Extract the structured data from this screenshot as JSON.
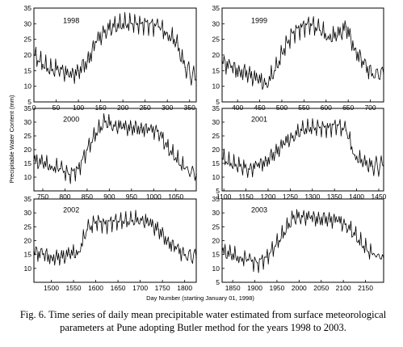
{
  "figure": {
    "x_axis_label": "Day Number (starting January 01, 1998)",
    "y_axis_label": "Precipitable Water Content (mm)",
    "caption_line1": "Fig. 6. Time series of daily mean precipitable water estimated from surface meteorological",
    "caption_line2": "parameters at Pune adopting Butler method for the years 1998 to 2003."
  },
  "chart_data": [
    {
      "type": "line",
      "title": "1998",
      "xlim": [
        0,
        365
      ],
      "ylim": [
        5,
        35
      ],
      "xticks": [
        0,
        50,
        100,
        150,
        200,
        250,
        300,
        350
      ],
      "yticks": [
        5,
        10,
        15,
        20,
        25,
        30,
        35
      ],
      "x": [
        0,
        20,
        40,
        60,
        80,
        100,
        120,
        140,
        160,
        180,
        200,
        220,
        240,
        260,
        280,
        300,
        320,
        340,
        365
      ],
      "y": [
        20,
        17,
        15,
        16,
        13,
        15,
        18,
        24,
        28,
        29,
        30,
        30,
        30,
        30,
        29,
        27,
        24,
        16,
        12
      ]
    },
    {
      "type": "line",
      "title": "1999",
      "xlim": [
        365,
        730
      ],
      "ylim": [
        5,
        35
      ],
      "xticks": [
        400,
        450,
        500,
        550,
        600,
        650,
        700
      ],
      "yticks": [
        5,
        10,
        15,
        20,
        25,
        30,
        35
      ],
      "x": [
        365,
        385,
        405,
        425,
        445,
        465,
        485,
        505,
        525,
        545,
        565,
        585,
        605,
        625,
        645,
        665,
        685,
        705,
        730
      ],
      "y": [
        18,
        16,
        15,
        14,
        12,
        11,
        15,
        22,
        27,
        29,
        30,
        28,
        26,
        26,
        29,
        22,
        17,
        14,
        14
      ]
    },
    {
      "type": "line",
      "title": "2000",
      "xlim": [
        730,
        1096
      ],
      "ylim": [
        5,
        35
      ],
      "xticks": [
        750,
        800,
        850,
        900,
        950,
        1000,
        1050
      ],
      "yticks": [
        10,
        15,
        20,
        25,
        30,
        35
      ],
      "x": [
        730,
        750,
        770,
        790,
        810,
        830,
        850,
        870,
        890,
        910,
        930,
        950,
        970,
        990,
        1010,
        1030,
        1050,
        1070,
        1096
      ],
      "y": [
        16,
        15,
        14,
        13,
        11,
        13,
        20,
        26,
        30,
        29,
        28,
        28,
        28,
        27,
        27,
        21,
        17,
        13,
        11
      ]
    },
    {
      "type": "line",
      "title": "2001",
      "xlim": [
        1096,
        1461
      ],
      "ylim": [
        5,
        35
      ],
      "xticks": [
        1100,
        1150,
        1200,
        1250,
        1300,
        1350,
        1400,
        1450
      ],
      "yticks": [
        5,
        10,
        15,
        20,
        25,
        30,
        35
      ],
      "x": [
        1096,
        1116,
        1136,
        1156,
        1176,
        1196,
        1216,
        1236,
        1256,
        1276,
        1296,
        1316,
        1336,
        1356,
        1376,
        1396,
        1416,
        1436,
        1461
      ],
      "y": [
        17,
        15,
        14,
        13,
        14,
        16,
        19,
        22,
        25,
        27,
        28,
        28,
        28,
        29,
        27,
        18,
        15,
        14,
        14
      ]
    },
    {
      "type": "line",
      "title": "2002",
      "xlim": [
        1461,
        1826
      ],
      "ylim": [
        5,
        35
      ],
      "xticks": [
        1500,
        1550,
        1600,
        1650,
        1700,
        1750,
        1800
      ],
      "yticks": [
        10,
        15,
        20,
        25,
        30,
        35
      ],
      "x": [
        1461,
        1481,
        1501,
        1521,
        1541,
        1561,
        1581,
        1601,
        1621,
        1641,
        1661,
        1681,
        1701,
        1721,
        1741,
        1761,
        1781,
        1801,
        1826
      ],
      "y": [
        16,
        15,
        14,
        14,
        15,
        16,
        24,
        27,
        26,
        27,
        27,
        27,
        28,
        26,
        24,
        20,
        17,
        15,
        14
      ]
    },
    {
      "type": "line",
      "title": "2003",
      "xlim": [
        1826,
        2191
      ],
      "ylim": [
        5,
        35
      ],
      "xticks": [
        1850,
        1900,
        1950,
        2000,
        2050,
        2100,
        2150
      ],
      "yticks": [
        5,
        10,
        15,
        20,
        25,
        30,
        35
      ],
      "x": [
        1826,
        1846,
        1866,
        1886,
        1906,
        1926,
        1946,
        1966,
        1986,
        2006,
        2026,
        2046,
        2066,
        2086,
        2106,
        2126,
        2146,
        2166,
        2191
      ],
      "y": [
        16,
        15,
        14,
        13,
        12,
        14,
        18,
        23,
        28,
        29,
        28,
        28,
        28,
        27,
        26,
        22,
        18,
        15,
        14
      ]
    }
  ]
}
